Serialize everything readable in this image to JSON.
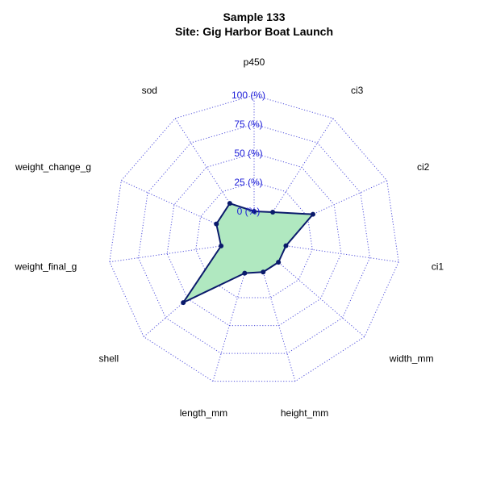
{
  "chart_data": {
    "type": "radar",
    "title": "Sample 133",
    "subtitle": "Site: Gig Harbor Boat Launch",
    "axes": [
      "p450",
      "ci3",
      "ci2",
      "ci1",
      "width_mm",
      "height_mm",
      "length_mm",
      "shell",
      "weight_final_g",
      "weight_change_g",
      "sod"
    ],
    "values": [
      0,
      4,
      30,
      2,
      2,
      2,
      3,
      55,
      3,
      10,
      13
    ],
    "range": [
      0,
      100
    ],
    "ticks": [
      "0 (%)",
      "25 (%)",
      "50 (%)",
      "75 (%)",
      "100 (%)"
    ],
    "tick_values": [
      0,
      25,
      50,
      75,
      100
    ],
    "grid": "dotted",
    "colors": {
      "fill": "#b0e8c0",
      "line": "#0a1a6b",
      "point": "#0a1a6b",
      "grid": "#5555dd",
      "tick_text": "#1a1ad8"
    }
  }
}
